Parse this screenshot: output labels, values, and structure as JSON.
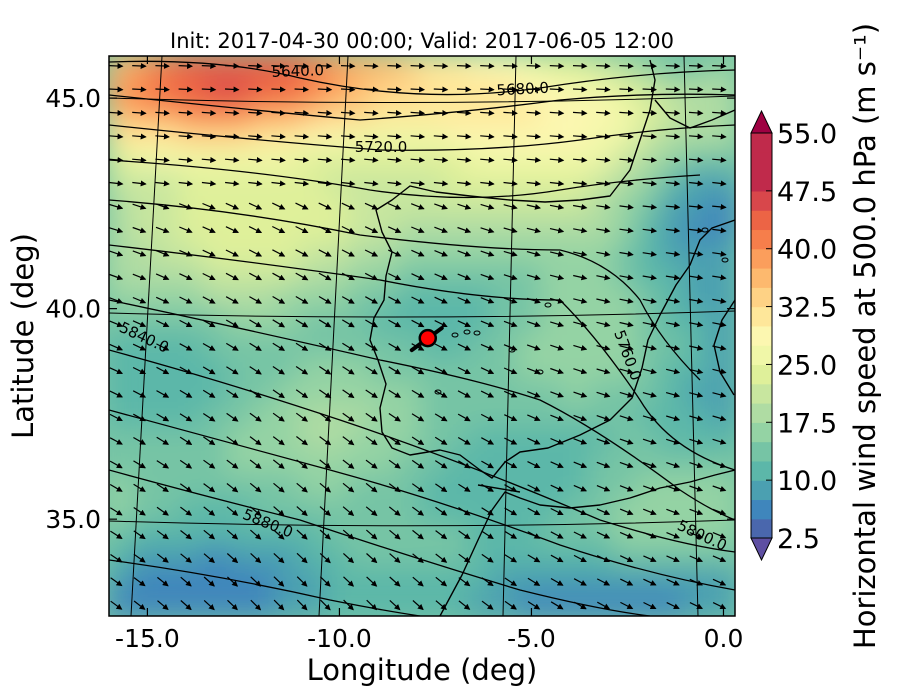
{
  "chart_data": {
    "type": "heatmap",
    "title": "Init: 2017-04-30 00:00; Valid: 2017-06-05 12:00",
    "xlabel": "Longitude (deg)",
    "ylabel": "Latitude (deg)",
    "xlim": [
      -16.0,
      0.3
    ],
    "ylim": [
      32.7,
      46.0
    ],
    "xticks": [
      -15.0,
      -10.0,
      -5.0,
      0.0
    ],
    "xtick_labels": [
      "-15.0",
      "-10.0",
      "-5.0",
      "0.0"
    ],
    "yticks": [
      35.0,
      40.0,
      45.0
    ],
    "ytick_labels": [
      "35.0",
      "40.0",
      "45.0"
    ],
    "colorbar": {
      "label": "Horizontal wind speed at 500.0 hPa (m s⁻¹)",
      "min": 2.5,
      "max": 55.0,
      "step": 2.5,
      "tick_values": [
        2.5,
        10.0,
        17.5,
        25.0,
        32.5,
        40.0,
        47.5,
        55.0
      ],
      "tick_labels": [
        "2.5",
        "10.0",
        "17.5",
        "25.0",
        "32.5",
        "40.0",
        "47.5",
        "55.0"
      ],
      "colors": [
        "#5e4fa2",
        "#4a67ad",
        "#3f86bc",
        "#4ba0b1",
        "#5cb7a9",
        "#76c4a5",
        "#94d3a4",
        "#afdca3",
        "#c8e69f",
        "#dff09a",
        "#f0f7a8",
        "#fcf7b0",
        "#fee79a",
        "#fed285",
        "#fdb96e",
        "#fb9e5c",
        "#f67e4b",
        "#ec6445",
        "#d8474b",
        "#c02a4b",
        "#9e0142"
      ]
    },
    "contour_labels": [
      "5640.0",
      "5680.0",
      "5720.0",
      "5760.0",
      "5840.0",
      "5880.0",
      "5800.0"
    ],
    "marker": {
      "lon": -7.7,
      "lat": 39.3,
      "color": "#ff0000"
    }
  }
}
